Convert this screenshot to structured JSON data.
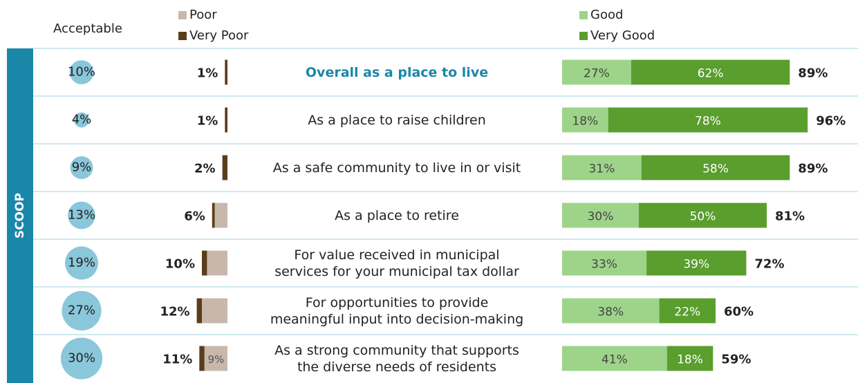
{
  "chart_data": {
    "type": "diverging-bar",
    "group_label": "SCOOP",
    "acceptable": {
      "title": "Acceptable",
      "color": "#8ac7da",
      "values": [
        10,
        4,
        9,
        13,
        19,
        27,
        30
      ],
      "value_labels": [
        "10%",
        "4%",
        "9%",
        "13%",
        "19%",
        "27%",
        "30%"
      ]
    },
    "categories": [
      "Overall as a place to live",
      "As a place to raise children",
      "As a safe community to live in or visit",
      "As a place to retire",
      "For value received in municipal\nservices for your municipal tax dollar",
      "For opportunities to provide\nmeaningful input into decision-making",
      "As a strong community that supports\nthe diverse needs of residents"
    ],
    "highlight": 0,
    "series": [
      {
        "name": "Poor",
        "color": "#c8b8ab",
        "side": "negative",
        "values": [
          0,
          0,
          0,
          5,
          8,
          10,
          9
        ],
        "value_labels": [
          null,
          null,
          null,
          null,
          null,
          null,
          "9%"
        ]
      },
      {
        "name": "Very Poor",
        "color": "#5a3e1b",
        "side": "negative",
        "values": [
          1,
          1,
          2,
          1,
          2,
          2,
          2
        ],
        "value_labels": [
          null,
          null,
          null,
          null,
          null,
          null,
          null
        ]
      },
      {
        "name": "Good",
        "color": "#9ed48a",
        "side": "positive",
        "values": [
          27,
          18,
          31,
          30,
          33,
          38,
          41
        ],
        "value_labels": [
          "27%",
          "18%",
          "31%",
          "30%",
          "33%",
          "38%",
          "41%"
        ]
      },
      {
        "name": "Very Good",
        "color": "#5a9e2e",
        "side": "positive",
        "values": [
          62,
          78,
          58,
          50,
          39,
          22,
          18
        ],
        "value_labels": [
          "62%",
          "78%",
          "58%",
          "50%",
          "39%",
          "22%",
          "18%"
        ]
      }
    ],
    "negative_totals": {
      "values": [
        1,
        1,
        2,
        6,
        10,
        12,
        11
      ],
      "value_labels": [
        "1%",
        "1%",
        "2%",
        "6%",
        "10%",
        "12%",
        "11%"
      ]
    },
    "positive_totals": {
      "values": [
        89,
        96,
        89,
        81,
        72,
        60,
        59
      ],
      "value_labels": [
        "89%",
        "96%",
        "89%",
        "81%",
        "72%",
        "60%",
        "59%"
      ]
    }
  }
}
